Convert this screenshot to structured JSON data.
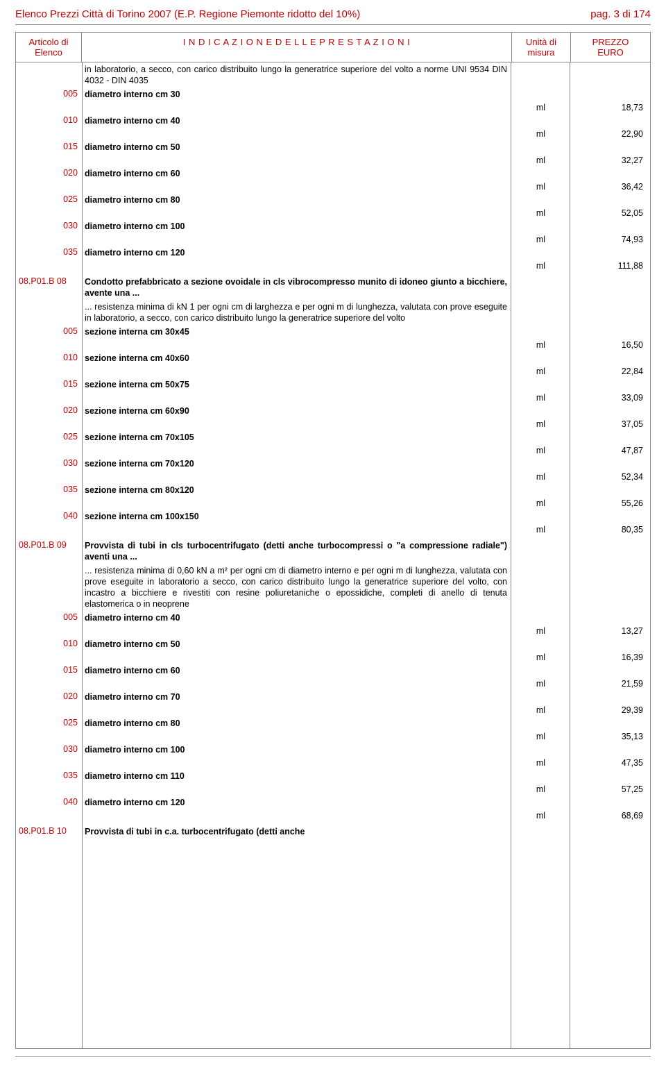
{
  "header": {
    "title_left": "Elenco Prezzi Città di Torino 2007 (E.P. Regione Piemonte ridotto del  10%)",
    "title_right": "pag. 3 di 174"
  },
  "table_header": {
    "col1_line1": "Articolo di",
    "col1_line2": "Elenco",
    "col2": "I N D I C A Z I O N E   D E L L E   P R E S T A Z I O N I",
    "col3_line1": "Unità di",
    "col3_line2": "misura",
    "col4_line1": "PREZZO",
    "col4_line2": "EURO"
  },
  "intro_text": "in laboratorio, a secco, con carico distribuito lungo la generatrice superiore del volto a norme UNI 9534 DIN 4032 - DIN 4035",
  "group1": [
    {
      "code": "005",
      "desc": "diametro interno cm 30",
      "unit": "ml",
      "price": "18,73"
    },
    {
      "code": "010",
      "desc": "diametro interno cm 40",
      "unit": "ml",
      "price": "22,90"
    },
    {
      "code": "015",
      "desc": "diametro interno cm 50",
      "unit": "ml",
      "price": "32,27"
    },
    {
      "code": "020",
      "desc": "diametro interno cm 60",
      "unit": "ml",
      "price": "36,42"
    },
    {
      "code": "025",
      "desc": "diametro interno cm 80",
      "unit": "ml",
      "price": "52,05"
    },
    {
      "code": "030",
      "desc": "diametro interno cm 100",
      "unit": "ml",
      "price": "74,93"
    },
    {
      "code": "035",
      "desc": "diametro interno cm 120",
      "unit": "ml",
      "price": "111,88"
    }
  ],
  "section_b08": {
    "code": "08.P01.B 08",
    "title": "Condotto prefabbricato a sezione ovoidale in cls vibrocompresso munito di idoneo giunto a bicchiere, avente una ...",
    "text": "... resistenza minima di kN 1 per ogni cm di larghezza e per ogni m di lunghezza, valutata con prove eseguite in laboratorio, a secco, con carico distribuito lungo la generatrice superiore del volto",
    "items": [
      {
        "code": "005",
        "desc": "sezione interna cm 30x45",
        "unit": "ml",
        "price": "16,50"
      },
      {
        "code": "010",
        "desc": "sezione interna cm 40x60",
        "unit": "ml",
        "price": "22,84"
      },
      {
        "code": "015",
        "desc": "sezione interna cm 50x75",
        "unit": "ml",
        "price": "33,09"
      },
      {
        "code": "020",
        "desc": "sezione interna cm 60x90",
        "unit": "ml",
        "price": "37,05"
      },
      {
        "code": "025",
        "desc": "sezione interna cm 70x105",
        "unit": "ml",
        "price": "47,87"
      },
      {
        "code": "030",
        "desc": "sezione interna cm 70x120",
        "unit": "ml",
        "price": "52,34"
      },
      {
        "code": "035",
        "desc": "sezione interna cm 80x120",
        "unit": "ml",
        "price": "55,26"
      },
      {
        "code": "040",
        "desc": "sezione interna cm 100x150",
        "unit": "ml",
        "price": "80,35"
      }
    ]
  },
  "section_b09": {
    "code": "08.P01.B 09",
    "title": "Provvista di tubi in cls turbocentrifugato (detti anche turbocompressi o \"a compressione radiale\") aventi una ...",
    "text": "... resistenza minima di 0,60 kN a m² per ogni cm di diametro interno e per ogni m di lunghezza, valutata con prove eseguite in laboratorio a secco, con carico distribuito lungo la generatrice superiore del volto, con incastro a bicchiere e rivestiti con resine poliuretaniche o epossidiche, completi di anello di tenuta elastomerica o in neoprene",
    "items": [
      {
        "code": "005",
        "desc": "diametro interno cm 40",
        "unit": "ml",
        "price": "13,27"
      },
      {
        "code": "010",
        "desc": "diametro interno cm 50",
        "unit": "ml",
        "price": "16,39"
      },
      {
        "code": "015",
        "desc": "diametro interno cm 60",
        "unit": "ml",
        "price": "21,59"
      },
      {
        "code": "020",
        "desc": "diametro interno cm 70",
        "unit": "ml",
        "price": "29,39"
      },
      {
        "code": "025",
        "desc": "diametro interno cm 80",
        "unit": "ml",
        "price": "35,13"
      },
      {
        "code": "030",
        "desc": "diametro interno cm 100",
        "unit": "ml",
        "price": "47,35"
      },
      {
        "code": "035",
        "desc": "diametro interno cm 110",
        "unit": "ml",
        "price": "57,25"
      },
      {
        "code": "040",
        "desc": "diametro interno cm 120",
        "unit": "ml",
        "price": "68,69"
      }
    ]
  },
  "section_b10": {
    "code": "08.P01.B 10",
    "title": "Provvista di tubi in c.a. turbocentrifugato (detti anche"
  }
}
